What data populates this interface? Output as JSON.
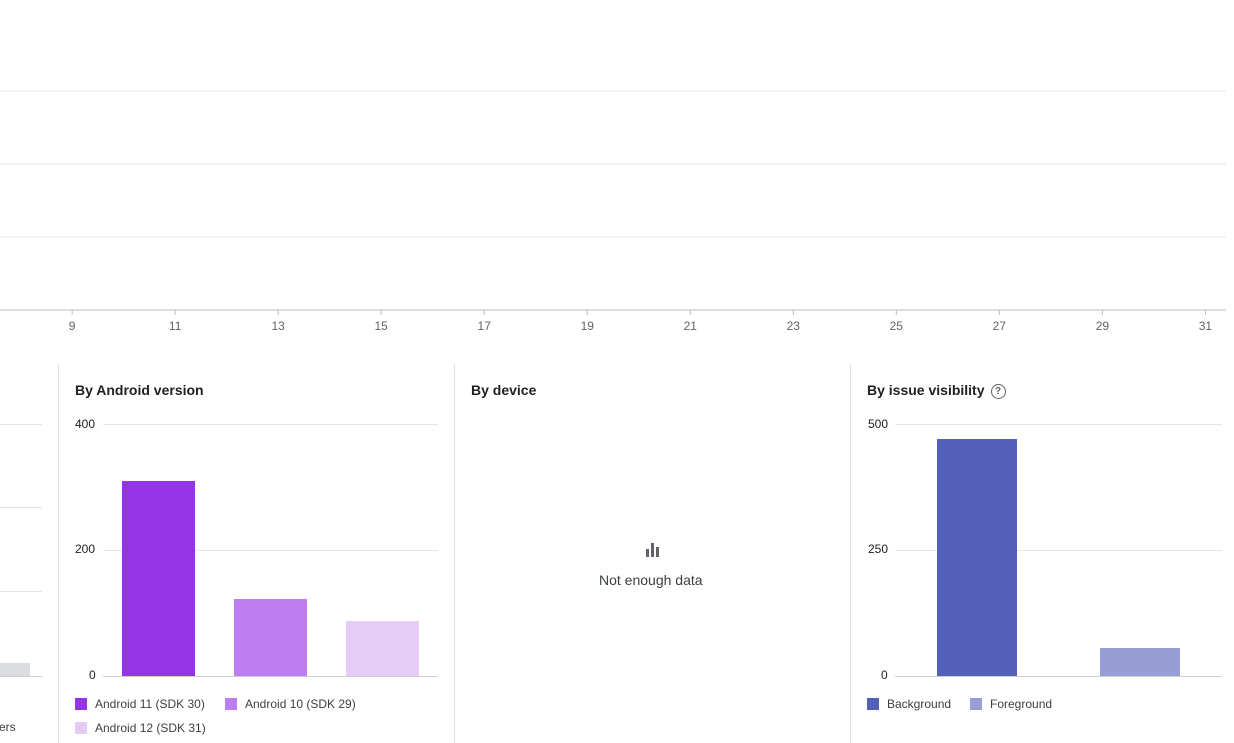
{
  "chart_data": [
    {
      "type": "line",
      "title": "",
      "x_ticks": [
        "9",
        "11",
        "13",
        "15",
        "17",
        "19",
        "21",
        "23",
        "25",
        "27",
        "29",
        "31"
      ],
      "x_range": [
        7.6,
        31.4
      ],
      "y_range": [
        0,
        6
      ],
      "series": [
        {
          "color": "#1a5a8a",
          "values": []
        },
        {
          "color": "#e8711a",
          "values": []
        }
      ]
    },
    {
      "type": "bar",
      "title": "By Android version",
      "categories": [
        "Android 11 (SDK 30)",
        "Android 10 (SDK 29)",
        "Android 12 (SDK 31)"
      ],
      "values": [
        310,
        122,
        87
      ],
      "colors": [
        "#9334e6",
        "#bd7cf0",
        "#e5cdf8"
      ],
      "y_ticks": [
        "400",
        "200",
        "0"
      ],
      "ylim": [
        0,
        400
      ]
    },
    {
      "type": "bar",
      "title": "By device",
      "categories": [],
      "values": [],
      "empty_message": "Not enough data"
    },
    {
      "type": "bar",
      "title": "By issue visibility",
      "categories": [
        "Background",
        "Foreground"
      ],
      "values": [
        470,
        55
      ],
      "colors": [
        "#5360b8",
        "#979ed6"
      ],
      "y_ticks": [
        "500",
        "250",
        "0"
      ],
      "ylim": [
        0,
        500
      ]
    }
  ],
  "left_partial": {
    "legend_fragment": "ers"
  },
  "icons": {
    "help": "help-circle-icon",
    "empty_chart": "bar-chart-icon"
  }
}
